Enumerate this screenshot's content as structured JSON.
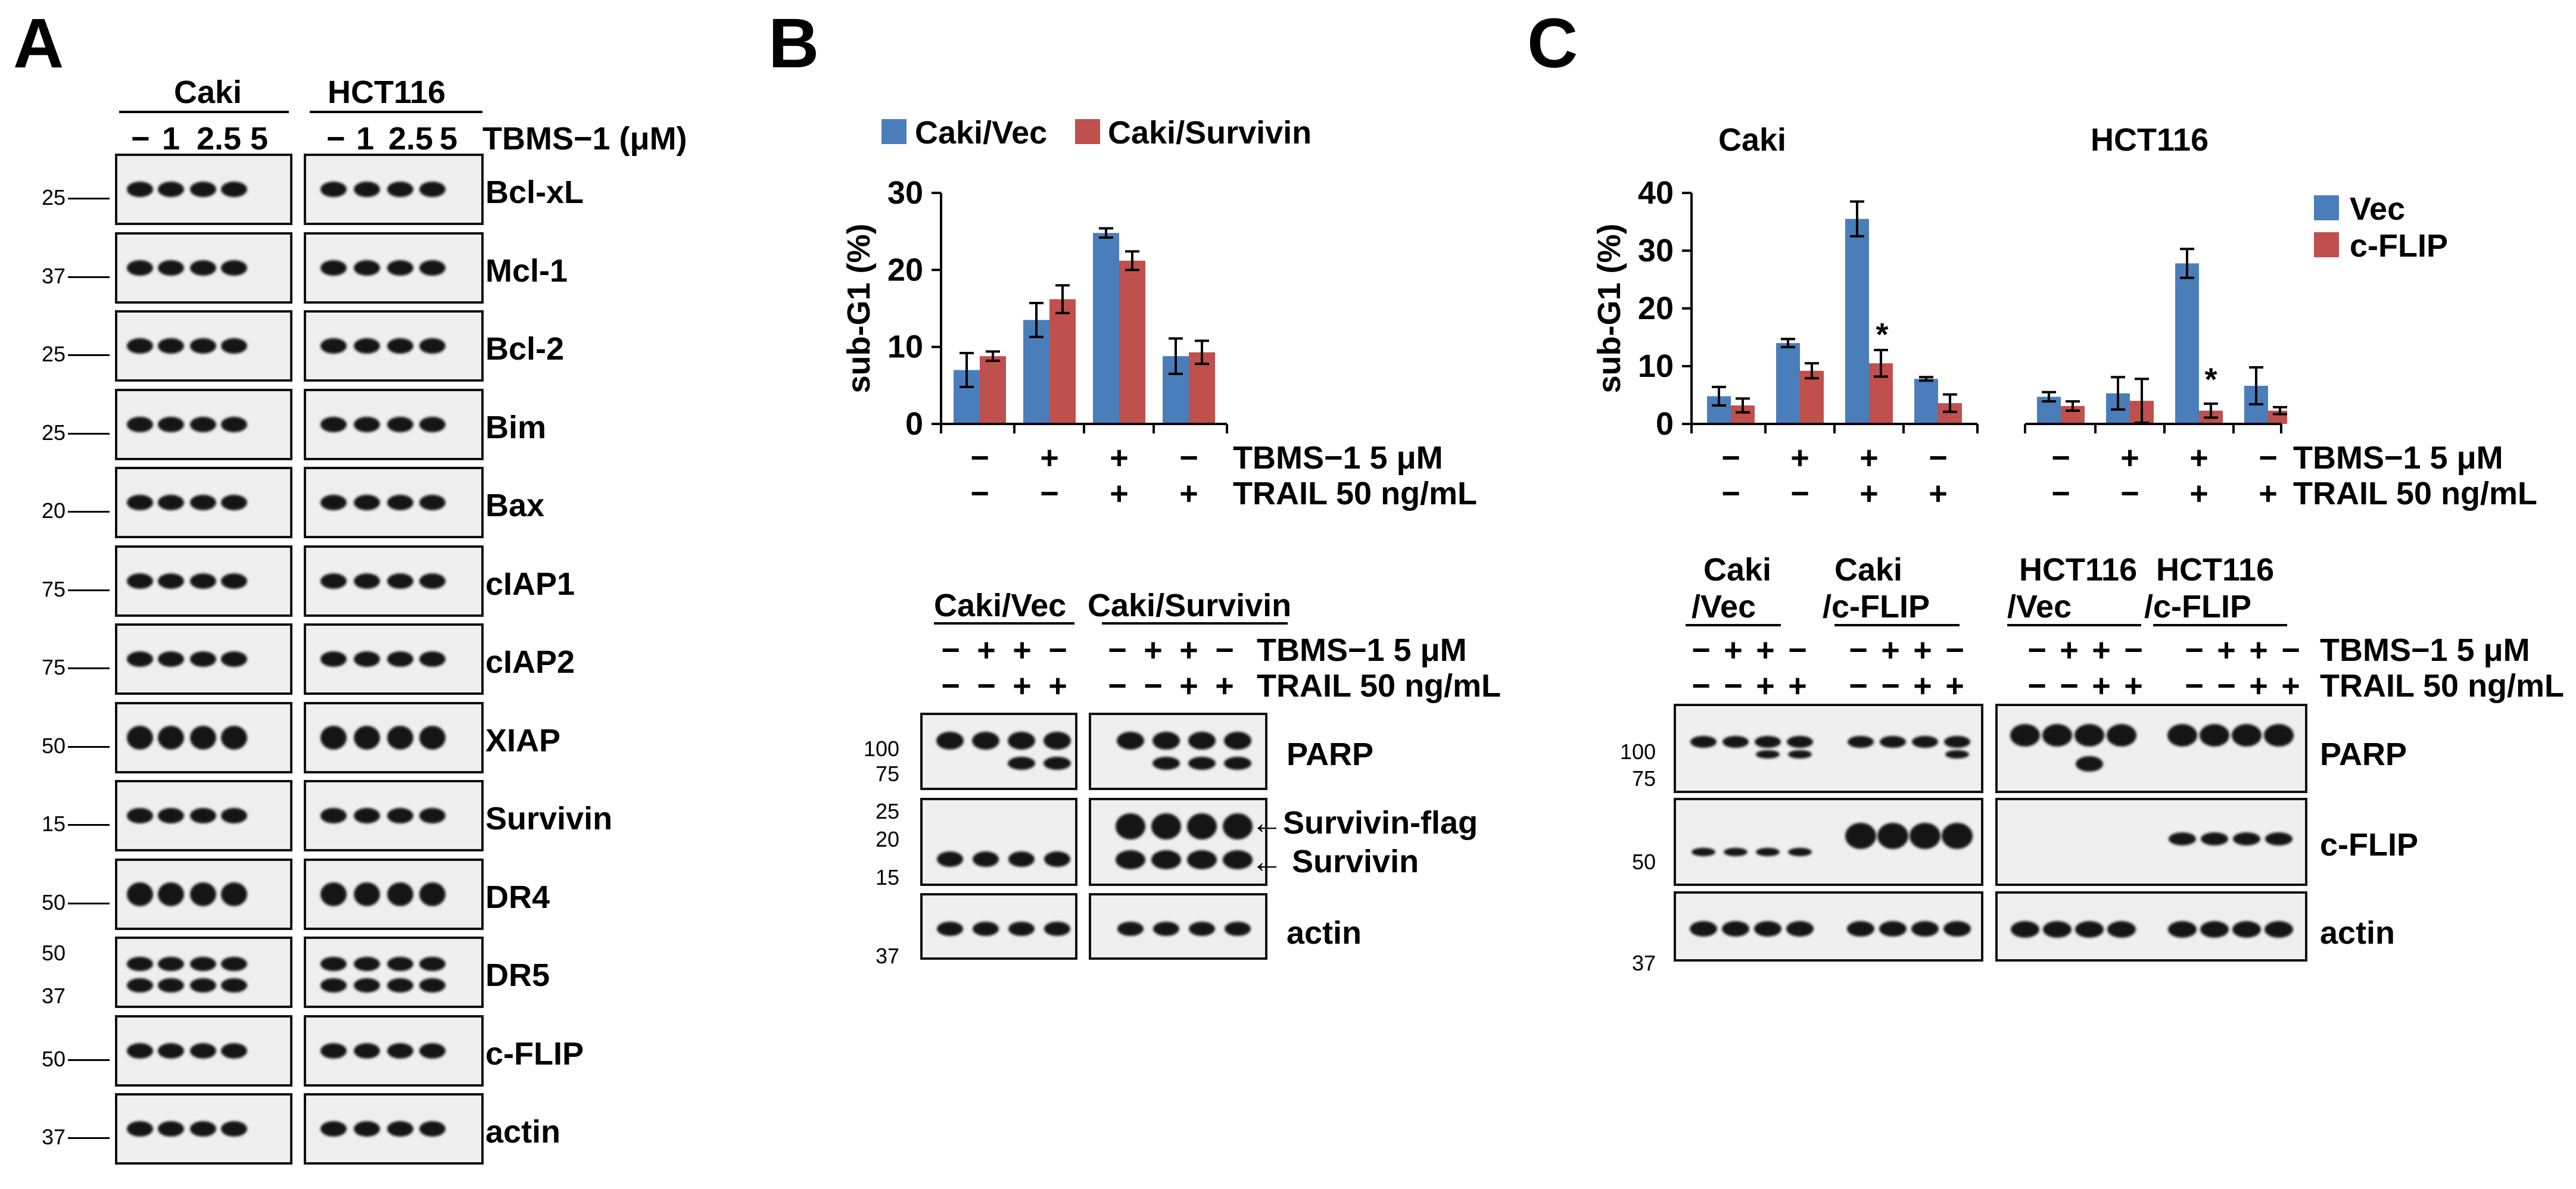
{
  "panels": {
    "a": "A",
    "b": "B",
    "c": "C"
  },
  "panel_a": {
    "group_labels": [
      "Caki",
      "HCT116"
    ],
    "lane_labels": [
      "−",
      "1",
      "2.5",
      "5"
    ],
    "treatment_label": "TBMS−1 (μM)",
    "rows": [
      {
        "protein": "Bcl-xL",
        "mw": [
          "25"
        ]
      },
      {
        "protein": "Mcl-1",
        "mw": [
          "37"
        ]
      },
      {
        "protein": "Bcl-2",
        "mw": [
          "25"
        ]
      },
      {
        "protein": "Bim",
        "mw": [
          "25"
        ]
      },
      {
        "protein": "Bax",
        "mw": [
          "20"
        ]
      },
      {
        "protein": "cIAP1",
        "mw": [
          "75"
        ]
      },
      {
        "protein": "cIAP2",
        "mw": [
          "75"
        ]
      },
      {
        "protein": "XIAP",
        "mw": [
          "50"
        ]
      },
      {
        "protein": "Survivin",
        "mw": [
          "15"
        ]
      },
      {
        "protein": "DR4",
        "mw": [
          "50"
        ]
      },
      {
        "protein": "DR5",
        "mw": [
          "50",
          "37"
        ]
      },
      {
        "protein": "c-FLIP",
        "mw": [
          "50"
        ]
      },
      {
        "protein": "actin",
        "mw": [
          "37"
        ]
      }
    ]
  },
  "panel_b": {
    "legend": [
      "Caki/Vec",
      "Caki/Survivin"
    ],
    "ylabel": "sub-G1 (%)",
    "yticks": [
      "0",
      "10",
      "20",
      "30"
    ],
    "treatment_rows": [
      {
        "label": "TBMS−1 5 μM",
        "signs": [
          "−",
          "+",
          "+",
          "−"
        ]
      },
      {
        "label": "TRAIL 50 ng/mL",
        "signs": [
          "−",
          "−",
          "+",
          "+"
        ]
      }
    ],
    "blot_groups": [
      "Caki/Vec",
      "Caki/Survivin"
    ],
    "blot_treatments": [
      {
        "label": "TBMS−1 5 μM",
        "signs": [
          "−",
          "+",
          "+",
          "−",
          "−",
          "+",
          "+",
          "−"
        ]
      },
      {
        "label": "TRAIL 50 ng/mL",
        "signs": [
          "−",
          "−",
          "+",
          "+",
          "−",
          "−",
          "+",
          "+"
        ]
      }
    ],
    "blot_rows": [
      {
        "protein": "PARP",
        "mw": [
          "100",
          "75"
        ]
      },
      {
        "protein": "←Survivin-flag",
        "protein2": "← Survivin",
        "mw": [
          "25",
          "20",
          "15"
        ]
      },
      {
        "protein": "actin",
        "mw": [
          "37"
        ]
      }
    ]
  },
  "panel_c": {
    "group_titles": [
      "Caki",
      "HCT116"
    ],
    "legend": [
      "Vec",
      "c-FLIP"
    ],
    "ylabel": "sub-G1 (%)",
    "yticks": [
      "0",
      "10",
      "20",
      "30",
      "40"
    ],
    "significance": "*",
    "treatment_rows": [
      {
        "label": "TBMS−1 5 μM",
        "signs": [
          "−",
          "+",
          "+",
          "−",
          "−",
          "+",
          "+",
          "−"
        ]
      },
      {
        "label": "TRAIL 50 ng/mL",
        "signs": [
          "−",
          "−",
          "+",
          "+",
          "−",
          "−",
          "+",
          "+"
        ]
      }
    ],
    "blot_groups": [
      [
        "Caki",
        "/Vec"
      ],
      [
        "Caki",
        "/c-FLIP"
      ],
      [
        "HCT116",
        "/Vec"
      ],
      [
        "HCT116",
        "/c-FLIP"
      ]
    ],
    "blot_treatments": [
      {
        "label": "TBMS−1 5 μM",
        "signs": [
          "−",
          "+",
          "+",
          "−",
          "−",
          "+",
          "+",
          "−",
          "−",
          "+",
          "+",
          "−",
          "−",
          "+",
          "+",
          "−"
        ]
      },
      {
        "label": "TRAIL 50 ng/mL",
        "signs": [
          "−",
          "−",
          "+",
          "+",
          "−",
          "−",
          "+",
          "+",
          "−",
          "−",
          "+",
          "+",
          "−",
          "−",
          "+",
          "+"
        ]
      }
    ],
    "blot_rows": [
      {
        "protein": "PARP",
        "mw": [
          "100",
          "75"
        ]
      },
      {
        "protein": "c-FLIP",
        "mw": [
          "50"
        ]
      },
      {
        "protein": "actin",
        "mw": [
          "37"
        ]
      }
    ]
  },
  "colors": {
    "series1": "#4a7ebb",
    "series2": "#c0504d"
  },
  "chart_data": [
    {
      "type": "bar",
      "title": "",
      "ylabel": "sub-G1 (%)",
      "ylim": [
        0,
        30
      ],
      "categories": [
        "−/−",
        "+/−",
        "+/+",
        "−/+"
      ],
      "series": [
        {
          "name": "Caki/Vec",
          "values": [
            7,
            13.5,
            24.8,
            8.8
          ],
          "errors": [
            2.2,
            2.2,
            0.6,
            2.3
          ]
        },
        {
          "name": "Caki/Survivin",
          "values": [
            8.8,
            16.2,
            21.2,
            9.3
          ],
          "errors": [
            0.6,
            1.8,
            1.2,
            1.5
          ]
        }
      ]
    },
    {
      "type": "bar",
      "title": "Caki / HCT116",
      "ylabel": "sub-G1 (%)",
      "ylim": [
        0,
        40
      ],
      "categories": [
        "Caki −/−",
        "Caki +/−",
        "Caki +/+",
        "Caki −/+",
        "HCT116 −/−",
        "HCT116 +/−",
        "HCT116 +/+",
        "HCT116 −/+"
      ],
      "series": [
        {
          "name": "Vec",
          "values": [
            4.8,
            14,
            35.5,
            7.8,
            4.7,
            5.3,
            27.8,
            6.6
          ],
          "errors": [
            1.6,
            0.7,
            3,
            0.3,
            0.8,
            2.8,
            2.5,
            3.2
          ]
        },
        {
          "name": "c-FLIP",
          "values": [
            3.2,
            9.2,
            10.5,
            3.6,
            3.1,
            4,
            2.3,
            2.3
          ],
          "errors": [
            1.2,
            1.3,
            2.3,
            1.5,
            0.8,
            3.8,
            1.2,
            0.6
          ]
        }
      ],
      "annotations": [
        "* on Caki +/+ c-FLIP",
        "* on HCT116 +/+ c-FLIP"
      ]
    }
  ]
}
